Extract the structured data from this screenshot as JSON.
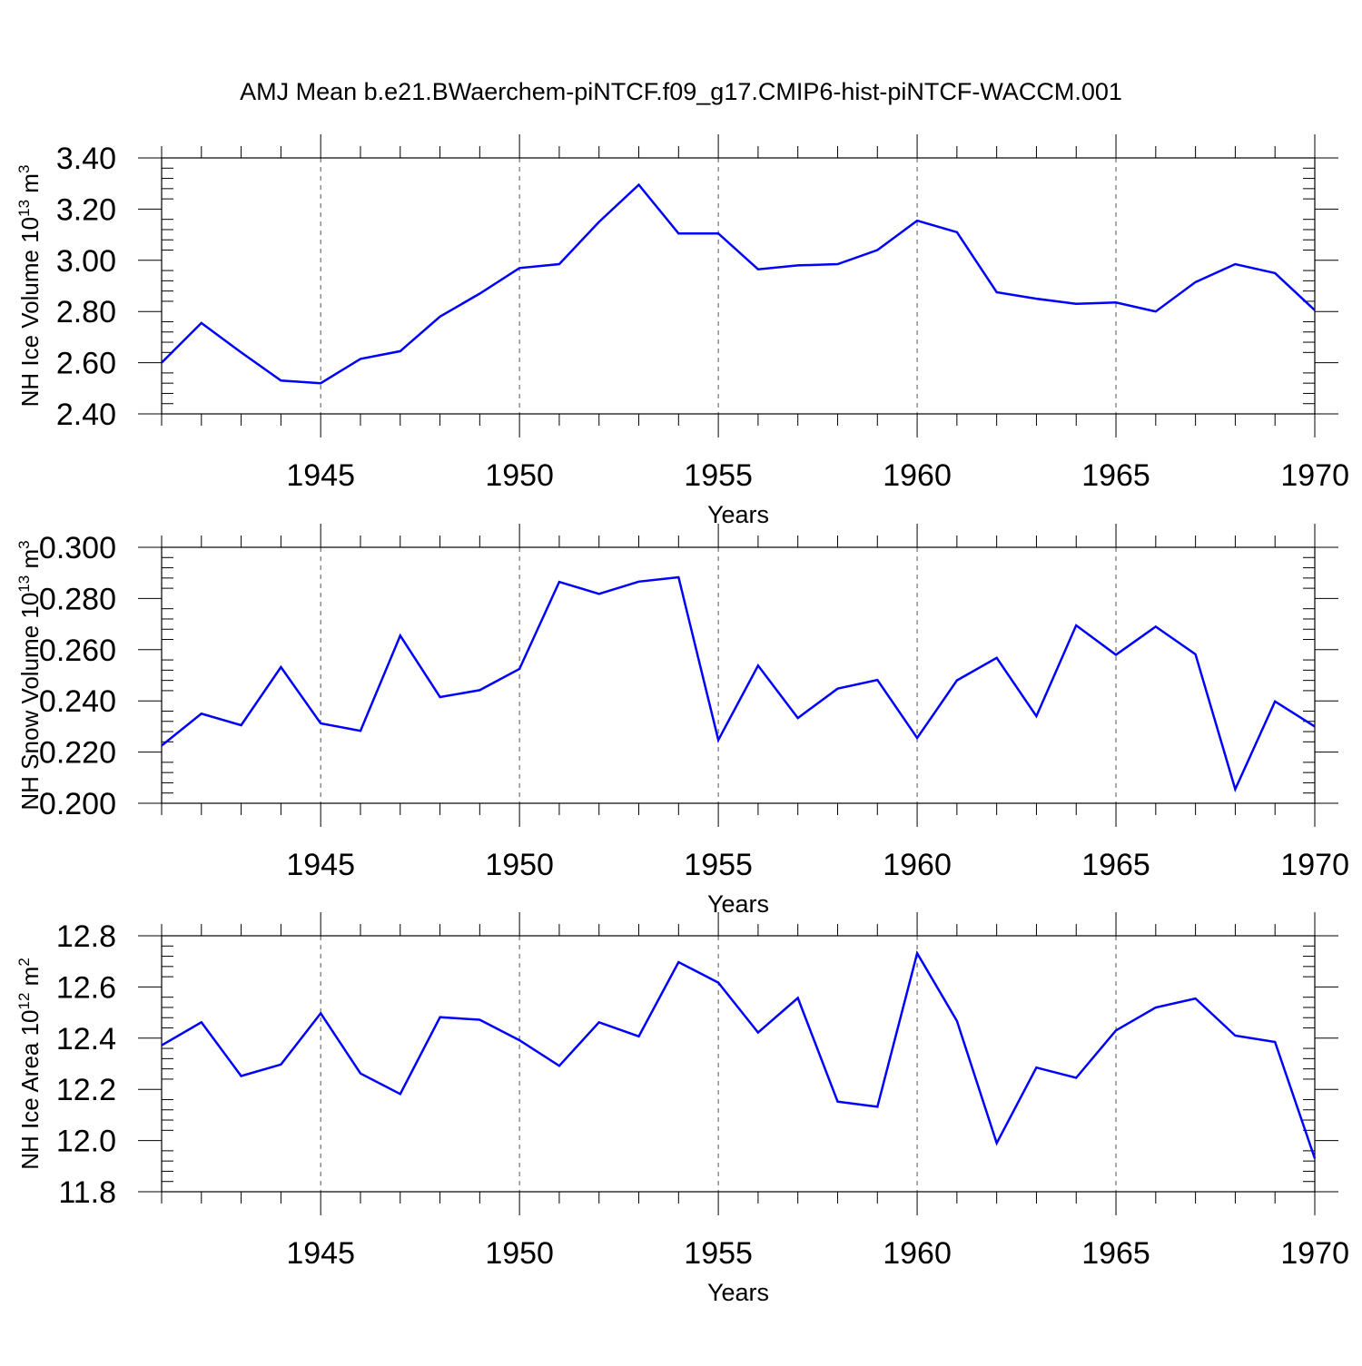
{
  "title": "AMJ Mean b.e21.BWaerchem-piNTCF.f09_g17.CMIP6-hist-piNTCF-WACCM.001",
  "line_color": "#0000ff",
  "chart_data": [
    {
      "type": "line",
      "ylabel_parts": {
        "main": "NH Ice Volume 10",
        "exp": "13",
        "unit": " m",
        "unit_exp": "3"
      },
      "xlabel": "Years",
      "xlim": [
        1941,
        1970
      ],
      "ylim": [
        2.4,
        3.4
      ],
      "y_ticks": [
        "2.40",
        "2.60",
        "2.80",
        "3.00",
        "3.20",
        "3.40"
      ],
      "x_tick_labels": [
        "1945",
        "1950",
        "1955",
        "1960",
        "1965",
        "1970"
      ],
      "x": [
        1941,
        1942,
        1943,
        1944,
        1945,
        1946,
        1947,
        1948,
        1949,
        1950,
        1951,
        1952,
        1953,
        1954,
        1955,
        1956,
        1957,
        1958,
        1959,
        1960,
        1961,
        1962,
        1963,
        1964,
        1965,
        1966,
        1967,
        1968,
        1969,
        1970
      ],
      "series": [
        {
          "values": [
            2.6,
            2.755,
            2.64,
            2.53,
            2.52,
            2.615,
            2.645,
            2.78,
            2.87,
            2.97,
            2.985,
            3.15,
            3.295,
            3.105,
            3.105,
            2.965,
            2.98,
            2.985,
            3.04,
            3.155,
            3.11,
            2.875,
            2.85,
            2.83,
            2.835,
            2.8,
            2.915,
            2.985,
            2.95,
            2.805
          ]
        }
      ]
    },
    {
      "type": "line",
      "ylabel_parts": {
        "main": "NH Snow Volume 10",
        "exp": "13",
        "unit": " m",
        "unit_exp": "3"
      },
      "xlabel": "Years",
      "xlim": [
        1941,
        1970
      ],
      "ylim": [
        0.2,
        0.3
      ],
      "y_ticks": [
        "0.200",
        "0.220",
        "0.240",
        "0.260",
        "0.280",
        "0.300"
      ],
      "x_tick_labels": [
        "1945",
        "1950",
        "1955",
        "1960",
        "1965",
        "1970"
      ],
      "x": [
        1941,
        1942,
        1943,
        1944,
        1945,
        1946,
        1947,
        1948,
        1949,
        1950,
        1951,
        1952,
        1953,
        1954,
        1955,
        1956,
        1957,
        1958,
        1959,
        1960,
        1961,
        1962,
        1963,
        1964,
        1965,
        1966,
        1967,
        1968,
        1969,
        1970
      ],
      "series": [
        {
          "values": [
            0.2225,
            0.235,
            0.2305,
            0.2532,
            0.2312,
            0.2283,
            0.2655,
            0.2415,
            0.2442,
            0.2525,
            0.2865,
            0.2818,
            0.2866,
            0.2883,
            0.2247,
            0.2538,
            0.2333,
            0.2448,
            0.2482,
            0.2255,
            0.248,
            0.2568,
            0.234,
            0.2695,
            0.258,
            0.269,
            0.2582,
            0.2055,
            0.2398,
            0.23
          ]
        }
      ]
    },
    {
      "type": "line",
      "ylabel_parts": {
        "main": "NH Ice Area 10",
        "exp": "12",
        "unit": " m",
        "unit_exp": "2"
      },
      "xlabel": "Years",
      "xlim": [
        1941,
        1970
      ],
      "ylim": [
        11.8,
        12.8
      ],
      "y_ticks": [
        "11.8",
        "12.0",
        "12.2",
        "12.4",
        "12.6",
        "12.8"
      ],
      "x_tick_labels": [
        "1945",
        "1950",
        "1955",
        "1960",
        "1965",
        "1970"
      ],
      "x": [
        1941,
        1942,
        1943,
        1944,
        1945,
        1946,
        1947,
        1948,
        1949,
        1950,
        1951,
        1952,
        1953,
        1954,
        1955,
        1956,
        1957,
        1958,
        1959,
        1960,
        1961,
        1962,
        1963,
        1964,
        1965,
        1966,
        1967,
        1968,
        1969,
        1970
      ],
      "series": [
        {
          "values": [
            12.372,
            12.462,
            12.252,
            12.297,
            12.497,
            12.262,
            12.182,
            12.482,
            12.472,
            12.392,
            12.292,
            12.462,
            12.407,
            12.697,
            12.617,
            12.422,
            12.557,
            12.152,
            12.132,
            12.732,
            12.467,
            11.99,
            12.285,
            12.245,
            12.43,
            12.52,
            12.555,
            12.41,
            12.385,
            11.93
          ]
        }
      ]
    }
  ]
}
